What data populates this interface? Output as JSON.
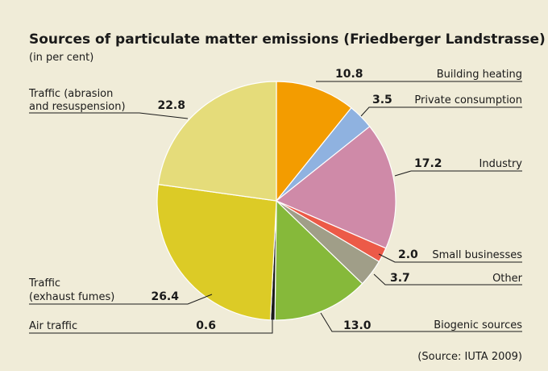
{
  "chart_data": {
    "type": "pie",
    "title": "Sources of particulate matter emissions (Friedberger Landstrasse)",
    "subtitle": "(in per cent)",
    "source": "(Source: IUTA 2009)",
    "slices": [
      {
        "label": [
          "Building heating"
        ],
        "value": 10.8,
        "value_text": "10.8",
        "color": "#f39c00"
      },
      {
        "label": [
          "Private consumption"
        ],
        "value": 3.5,
        "value_text": "3.5",
        "color": "#8fb2e0"
      },
      {
        "label": [
          "Industry"
        ],
        "value": 17.2,
        "value_text": "17.2",
        "color": "#cf8aa8"
      },
      {
        "label": [
          "Small businesses"
        ],
        "value": 2.0,
        "value_text": "2.0",
        "color": "#ec5a48"
      },
      {
        "label": [
          "Other"
        ],
        "value": 3.7,
        "value_text": "3.7",
        "color": "#a09e88"
      },
      {
        "label": [
          "Biogenic sources"
        ],
        "value": 13.0,
        "value_text": "13.0",
        "color": "#86b93a"
      },
      {
        "label": [
          "Air traffic"
        ],
        "value": 0.6,
        "value_text": "0.6",
        "color": "#1a1a1a"
      },
      {
        "label": [
          "Traffic",
          "(exhaust fumes)"
        ],
        "value": 26.4,
        "value_text": "26.4",
        "color": "#dccb26"
      },
      {
        "label": [
          "Traffic (abrasion",
          "and resuspension)"
        ],
        "value": 22.8,
        "value_text": "22.8",
        "color": "#e5dc7a"
      }
    ]
  }
}
